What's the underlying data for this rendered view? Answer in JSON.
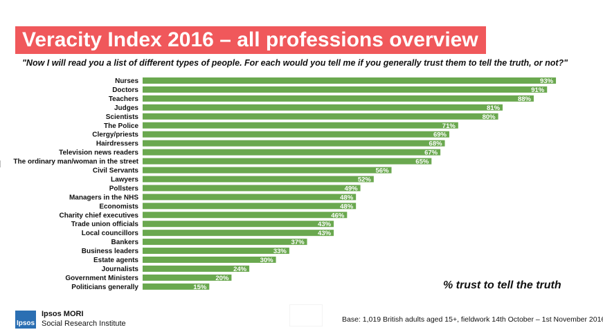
{
  "title": "Veracity Index 2016 – all professions overview",
  "subtitle": "\"Now I will read you a list of different types of people. For each would you tell me if you generally trust them to tell the truth, or not?\"",
  "axis_note": "% trust to tell the truth",
  "brand": {
    "name": "Ipsos MORI",
    "tagline": "Social Research Institute",
    "logo_text": "Ipsos"
  },
  "base_note": "Base: 1,019 British adults aged 15+, fieldwork 14th October – 1st November 2016",
  "colors": {
    "bar": "#6aa84f",
    "title_bg": "#f0585b",
    "title_text": "#ffffff"
  },
  "chart_data": {
    "type": "bar",
    "orientation": "horizontal",
    "categories": [
      "Nurses",
      "Doctors",
      "Teachers",
      "Judges",
      "Scientists",
      "The Police",
      "Clergy/priests",
      "Hairdressers",
      "Television news readers",
      "The ordinary man/woman in the street",
      "Civil Servants",
      "Lawyers",
      "Pollsters",
      "Managers in the NHS",
      "Economists",
      "Charity chief executives",
      "Trade union officials",
      "Local councillors",
      "Bankers",
      "Business leaders",
      "Estate agents",
      "Journalists",
      "Government Ministers",
      "Politicians generally"
    ],
    "values": [
      93,
      91,
      88,
      81,
      80,
      71,
      69,
      68,
      67,
      65,
      56,
      52,
      49,
      48,
      48,
      46,
      43,
      43,
      37,
      33,
      30,
      24,
      20,
      15
    ],
    "data_labels": [
      "93%",
      "91%",
      "88%",
      "81%",
      "80%",
      "71%",
      "69%",
      "68%",
      "67%",
      "65%",
      "56%",
      "52%",
      "49%",
      "48%",
      "48%",
      "46%",
      "43%",
      "43%",
      "37%",
      "33%",
      "30%",
      "24%",
      "20%",
      "15%"
    ],
    "xlim": [
      0,
      100
    ],
    "grid": false,
    "legend": "none"
  }
}
